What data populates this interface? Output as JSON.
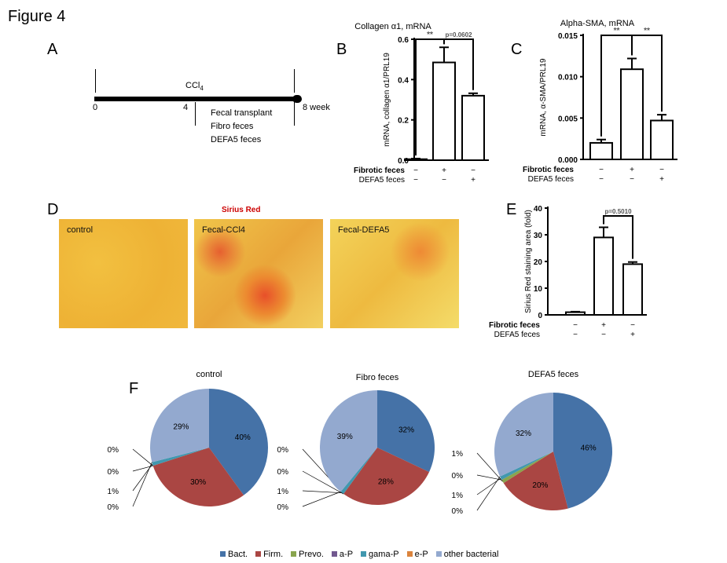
{
  "figure_title": "Figure 4",
  "panel_labels": {
    "A": "A",
    "B": "B",
    "C": "C",
    "D": "D",
    "E": "E",
    "F": "F"
  },
  "timeline": {
    "agent": "CCl4",
    "agent_base": "CCl",
    "agent_sub": "4",
    "ticks": [
      "0",
      "4",
      "8 week"
    ],
    "transplant_lines": [
      "Fecal transplant",
      "Fibro feces",
      "DEFA5 feces"
    ]
  },
  "histology": {
    "title": "Sirius Red",
    "title_color": "#cc0000",
    "images": [
      "control",
      "Fecal-CCl4",
      "Fecal-DEFA5"
    ]
  },
  "colors": {
    "Bact.": "#4572a7",
    "Firm.": "#aa4643",
    "Prevo.": "#89a54e",
    "a-P": "#71588f",
    "gama-P": "#4198af",
    "e-P": "#db843d",
    "other bacterial": "#93a9cf"
  },
  "chart_data": [
    {
      "type": "bar",
      "id": "B",
      "title": "Collagen α1, mRNA",
      "ylabel": "mRNA, collagen α1/PRL19",
      "ylim": [
        0,
        0.6
      ],
      "yticks": [
        "0.0",
        "0.2",
        "0.4",
        "0.6"
      ],
      "yticks_values": [
        0,
        0.2,
        0.4,
        0.6
      ],
      "row_labels": [
        "Fibrotic feces",
        "DEFA5 feces"
      ],
      "conditions": [
        [
          "−",
          "+",
          "−"
        ],
        [
          "−",
          "−",
          "+"
        ]
      ],
      "values": [
        0.005,
        0.485,
        0.32
      ],
      "errors": [
        0.003,
        0.075,
        0.012
      ],
      "annotations": [
        {
          "from": 0,
          "to": 1,
          "text": "**"
        },
        {
          "from": 1,
          "to": 2,
          "text": "p=0.0602"
        }
      ]
    },
    {
      "type": "bar",
      "id": "C",
      "title": "Alpha-SMA, mRNA",
      "ylabel": "mRNA, α-SMA/PRL19",
      "ylim": [
        0,
        0.015
      ],
      "yticks": [
        "0.000",
        "0.005",
        "0.010",
        "0.015"
      ],
      "yticks_values": [
        0,
        0.005,
        0.01,
        0.015
      ],
      "row_labels": [
        "Fibrotic feces",
        "DEFA5 feces"
      ],
      "conditions": [
        [
          "−",
          "+",
          "−"
        ],
        [
          "−",
          "−",
          "+"
        ]
      ],
      "values": [
        0.002,
        0.0109,
        0.0047
      ],
      "errors": [
        0.0004,
        0.0013,
        0.0007
      ],
      "annotations": [
        {
          "from": 0,
          "to": 1,
          "text": "**"
        },
        {
          "from": 1,
          "to": 2,
          "text": "**"
        }
      ]
    },
    {
      "type": "bar",
      "id": "E",
      "title": "",
      "ylabel": "Sirius Red staining area (fold)",
      "ylim": [
        0,
        40
      ],
      "yticks": [
        "0",
        "10",
        "20",
        "30",
        "40"
      ],
      "yticks_values": [
        0,
        10,
        20,
        30,
        40
      ],
      "row_labels": [
        "Fibrotic feces",
        "DEFA5 feces"
      ],
      "conditions": [
        [
          "−",
          "+",
          "−"
        ],
        [
          "−",
          "−",
          "+"
        ]
      ],
      "values": [
        1,
        29,
        19
      ],
      "errors": [
        0.2,
        3.8,
        0.8
      ],
      "annotations": [
        {
          "from": 1,
          "to": 2,
          "text": "p=0.5010"
        }
      ]
    },
    {
      "type": "pie",
      "id": "F",
      "legend": [
        "Bact.",
        "Firm.",
        "Prevo.",
        "a-P",
        "gama-P",
        "e-P",
        "other bacterial"
      ],
      "legend_position": "bottom",
      "pies": [
        {
          "title": "control",
          "values": [
            40,
            30,
            0,
            0,
            1,
            0,
            29
          ],
          "labels": [
            "40%",
            "30%",
            "0%",
            "0%",
            "1%",
            "0%",
            "29%"
          ]
        },
        {
          "title": "Fibro feces",
          "values": [
            32,
            28,
            0,
            0,
            1,
            0,
            39
          ],
          "labels": [
            "32%",
            "28%",
            "0%",
            "0%",
            "1%",
            "0%",
            "39%"
          ]
        },
        {
          "title": "DEFA5 feces",
          "values": [
            46,
            20,
            1,
            0,
            1,
            0,
            32
          ],
          "labels": [
            "46%",
            "20%",
            "1%",
            "0%",
            "1%",
            "0%",
            "32%"
          ]
        }
      ]
    }
  ]
}
